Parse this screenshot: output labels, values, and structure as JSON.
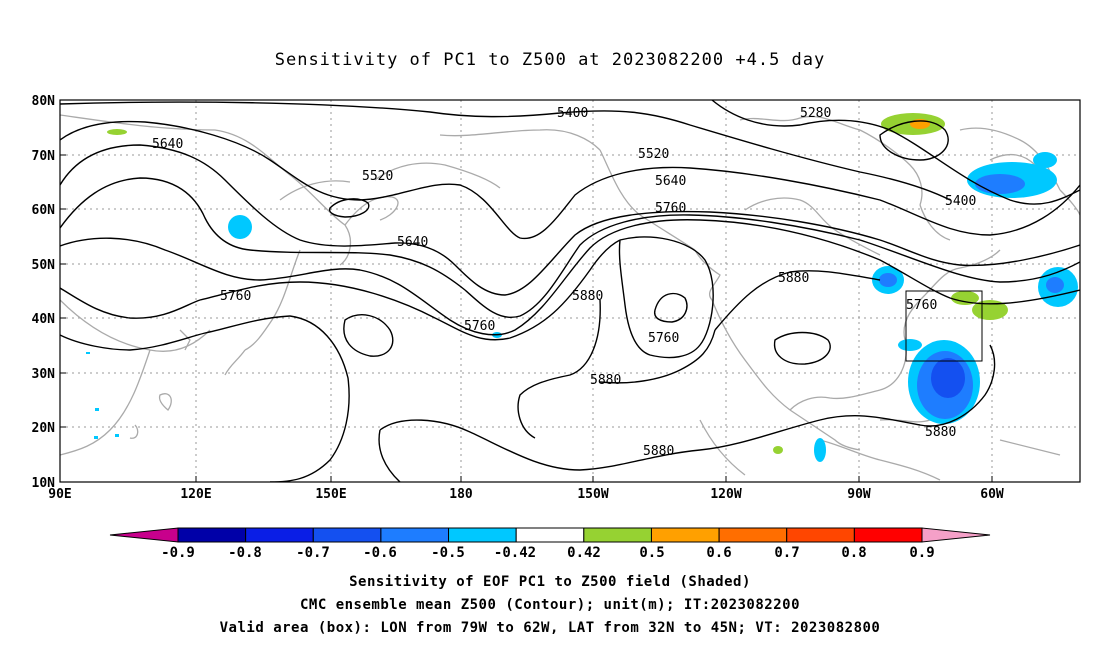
{
  "title": "Sensitivity of PC1 to Z500 at 2023082200 +4.5 day",
  "map": {
    "lat_labels": [
      "80N",
      "70N",
      "60N",
      "50N",
      "40N",
      "30N",
      "20N",
      "10N"
    ],
    "lon_labels": [
      "90E",
      "120E",
      "150E",
      "180",
      "150W",
      "120W",
      "90W",
      "60W"
    ],
    "contour_labels": [
      "5400",
      "5280",
      "5640",
      "5520",
      "5520",
      "5640",
      "5760",
      "5400",
      "5760",
      "5640",
      "5760",
      "5880",
      "5880",
      "5760",
      "5760",
      "5880",
      "5880",
      "5880"
    ],
    "valid_box": {
      "lon_from": "79W",
      "lon_to": "62W",
      "lat_from": "32N",
      "lat_to": "45N"
    }
  },
  "colorbar": {
    "labels": [
      "-0.9",
      "-0.8",
      "-0.7",
      "-0.6",
      "-0.5",
      "-0.42",
      "0.42",
      "0.5",
      "0.6",
      "0.7",
      "0.8",
      "0.9"
    ],
    "colors": [
      "#0000a8",
      "#0a1ee6",
      "#1450f0",
      "#1e7dff",
      "#00c8ff",
      "#ffffff",
      "#96d232",
      "#ffa000",
      "#ff6e00",
      "#ff4600",
      "#ff0000"
    ],
    "under_color": "#c8008c",
    "over_color": "#f5a0c8"
  },
  "captions": {
    "line1": "Sensitivity of EOF PC1 to Z500 field (Shaded)",
    "line2": "CMC ensemble mean Z500 (Contour); unit(m); IT:2023082200",
    "line3": "Valid area (box): LON from 79W to 62W, LAT from 32N to 45N; VT: 2023082800"
  }
}
